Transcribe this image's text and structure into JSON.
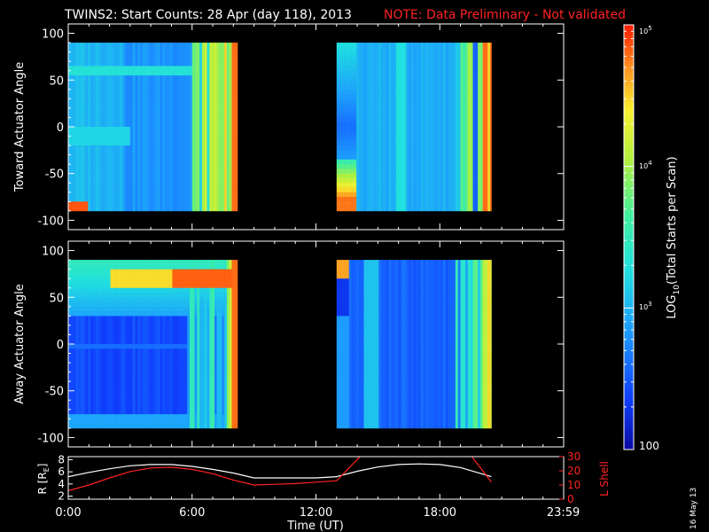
{
  "header": {
    "title": "TWINS2: Start Counts: 28 Apr (day 118), 2013",
    "note": "NOTE: Data Preliminary - Not validated",
    "note_color": "#ff2222"
  },
  "side_date": "16 May 13",
  "chart_data": [
    {
      "type": "heatmap",
      "panel": "toward",
      "ylabel": "Toward Actuator Angle",
      "ylim": [
        -110,
        110
      ],
      "yticks": [
        100,
        50,
        0,
        -50,
        -100
      ],
      "xlim_hours": [
        0,
        24
      ],
      "data_intervals_hours": [
        [
          0.0,
          8.2
        ],
        [
          13.0,
          20.5
        ]
      ],
      "colorscale": "rainbow-log",
      "features": "mostly low-mid counts (cyan/blue) with high counts (yellow/red) near 6.5-8.2 h and 17-20.5 h"
    },
    {
      "type": "heatmap",
      "panel": "away",
      "ylabel": "Away Actuator Angle",
      "ylim": [
        -110,
        110
      ],
      "yticks": [
        100,
        50,
        0,
        -50,
        -100
      ],
      "xlim_hours": [
        0,
        24
      ],
      "data_intervals_hours": [
        [
          0.0,
          8.2
        ],
        [
          13.0,
          20.5
        ]
      ],
      "colorscale": "rainbow-log",
      "features": "high-count (red/orange) band near +70 deg from 2-8 h"
    },
    {
      "type": "line",
      "panel": "orbit",
      "xlabel": "Time (UT)",
      "x_tick_labels": [
        "0:00",
        "6:00",
        "12:00",
        "18:00",
        "23:59"
      ],
      "x_tick_hours": [
        0,
        6,
        12,
        18,
        23.983
      ],
      "left_axis": {
        "label_main": "R [R",
        "label_sub": "E",
        "label_end": "]",
        "ylim": [
          1.5,
          8.5
        ],
        "ticks": [
          2,
          4,
          6,
          8
        ]
      },
      "right_axis": {
        "label": "L Shell",
        "ylim": [
          0,
          30
        ],
        "ticks": [
          0,
          10,
          20,
          30
        ],
        "color": "#ff2222"
      },
      "series": [
        {
          "axis": "left",
          "color": "#ffffff",
          "x": [
            0,
            1,
            2,
            3,
            4,
            5,
            6,
            7,
            8,
            9,
            10,
            11,
            12,
            13,
            14,
            15,
            16,
            17,
            18,
            19,
            20.5
          ],
          "y": [
            5.2,
            5.9,
            6.5,
            7.0,
            7.2,
            7.2,
            6.9,
            6.4,
            5.8,
            5.0,
            5.0,
            5.0,
            5.0,
            5.2,
            6.1,
            6.8,
            7.2,
            7.3,
            7.2,
            6.7,
            5.2
          ]
        },
        {
          "axis": "right",
          "color": "#ff2222",
          "x": [
            0,
            1,
            2,
            3,
            4,
            5,
            6,
            7,
            8,
            9,
            10,
            11,
            12,
            13,
            14.2,
            19.5,
            20.5
          ],
          "y": [
            6.0,
            10.0,
            15.0,
            19.5,
            22.0,
            22.5,
            21.0,
            18.0,
            13.5,
            10.0,
            10.5,
            11.0,
            12.0,
            13.0,
            31,
            31,
            12.0
          ]
        }
      ]
    }
  ],
  "colorbar": {
    "label_main": "LOG",
    "label_sub": "10",
    "label_rest": "(Total Starts per Scan)",
    "tick_labels": {
      "top_base": "10",
      "top_exp": "5",
      "mid_base": "10",
      "mid_exp": "4",
      "low_base": "10",
      "low_exp": "3",
      "bottom": "100"
    },
    "log_range": [
      2,
      5
    ]
  }
}
